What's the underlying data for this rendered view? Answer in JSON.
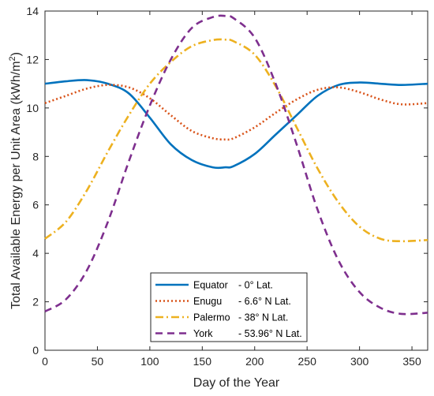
{
  "chart_data": {
    "type": "line",
    "title": "",
    "xlabel": "Day of the Year",
    "ylabel_prefix": "Total Available Energy per Unit Area (kWh/m",
    "ylabel_sup": "2",
    "ylabel_suffix": ")",
    "xlim": [
      0,
      365
    ],
    "ylim": [
      0,
      14
    ],
    "xticks": [
      0,
      50,
      100,
      150,
      200,
      250,
      300,
      350
    ],
    "yticks": [
      0,
      2,
      4,
      6,
      8,
      10,
      12,
      14
    ],
    "grid": false,
    "legend_position": "bottom-center",
    "x": [
      0,
      20,
      40,
      60,
      80,
      100,
      120,
      140,
      160,
      172,
      180,
      200,
      220,
      240,
      260,
      280,
      300,
      320,
      340,
      365
    ],
    "series": [
      {
        "name": "Equator",
        "legend_note": "- 0° Lat.",
        "color": "#0072BD",
        "style": "solid",
        "values": [
          11.0,
          11.1,
          11.15,
          11.0,
          10.6,
          9.6,
          8.5,
          7.85,
          7.55,
          7.55,
          7.6,
          8.1,
          8.9,
          9.7,
          10.5,
          10.95,
          11.05,
          11.0,
          10.95,
          11.0
        ]
      },
      {
        "name": "Enugu",
        "legend_note": "- 6.6° N Lat.",
        "color": "#D95319",
        "style": "dotted",
        "values": [
          10.2,
          10.5,
          10.8,
          10.95,
          10.85,
          10.4,
          9.7,
          9.05,
          8.75,
          8.7,
          8.75,
          9.2,
          9.8,
          10.35,
          10.75,
          10.85,
          10.65,
          10.35,
          10.15,
          10.2
        ]
      },
      {
        "name": "Palermo",
        "legend_note": "- 38° N Lat.",
        "color": "#EDB120",
        "style": "dashdot",
        "values": [
          4.6,
          5.3,
          6.6,
          8.2,
          9.7,
          11.0,
          11.9,
          12.55,
          12.8,
          12.82,
          12.75,
          12.2,
          10.9,
          9.2,
          7.5,
          6.1,
          5.1,
          4.6,
          4.5,
          4.55
        ]
      },
      {
        "name": "York",
        "legend_note": "- 53.96° N Lat.",
        "color": "#7E2F8E",
        "style": "dashed",
        "values": [
          1.6,
          2.1,
          3.3,
          5.3,
          7.8,
          10.1,
          12.0,
          13.3,
          13.75,
          13.8,
          13.7,
          12.9,
          11.0,
          8.5,
          5.8,
          3.7,
          2.4,
          1.75,
          1.5,
          1.55
        ]
      }
    ]
  }
}
